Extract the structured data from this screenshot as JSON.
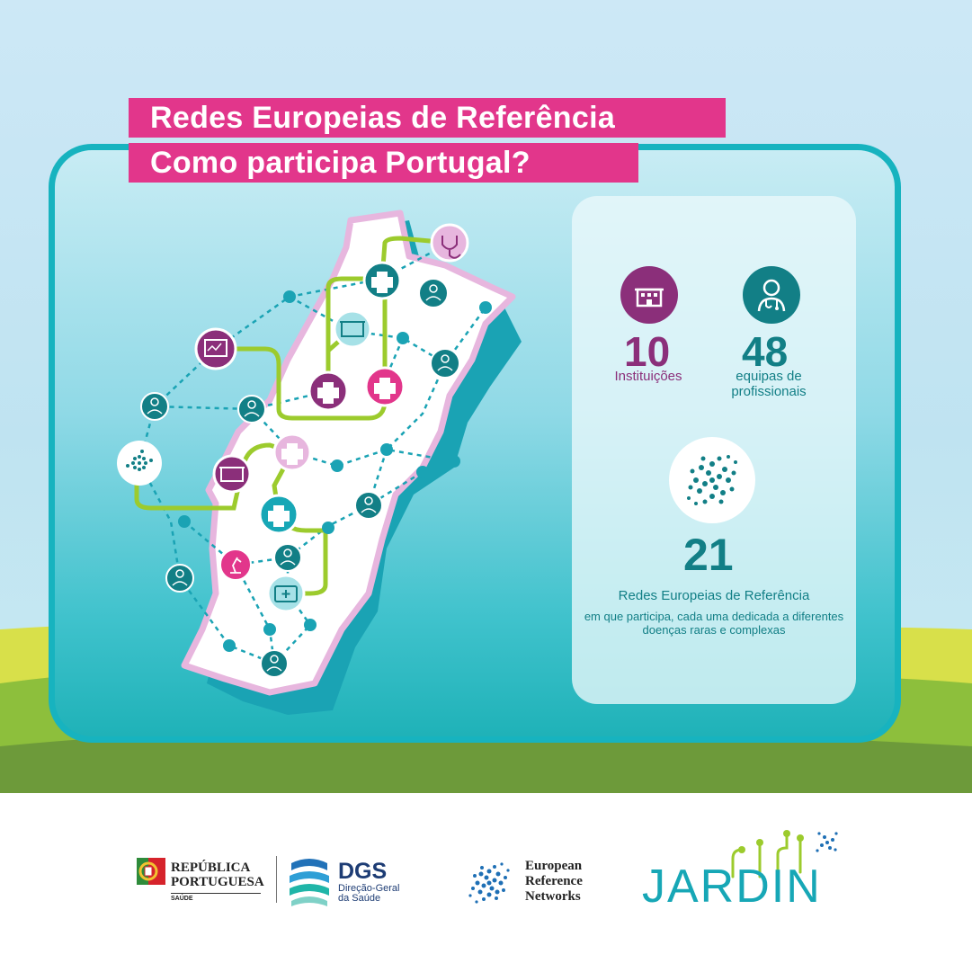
{
  "title": {
    "line1": "Redes Europeias de Referência",
    "line2": "Como participa Portugal?"
  },
  "stats": {
    "institutions": {
      "value": "10",
      "label": "Instituições",
      "icon": "hospital-building-icon"
    },
    "teams": {
      "value": "48",
      "label": "equipas de profissionais",
      "icon": "doctor-icon"
    },
    "networks": {
      "value": "21",
      "label": "Redes Europeias de Referência",
      "description": "em que participa, cada uma dedicada a diferentes doenças raras e complexas",
      "icon": "ern-dots-icon"
    }
  },
  "map": {
    "region": "Portugal",
    "icons": [
      "stethoscope-icon",
      "medical-cross-icon",
      "doctor-icon",
      "hospital-building-icon",
      "monitor-chart-icon",
      "ern-dots-icon",
      "microscope-icon",
      "first-aid-kit-icon"
    ]
  },
  "footer": {
    "republica": {
      "name": "REPÚBLICA\nPORTUGUESA",
      "sub": "SAÚDE"
    },
    "dgs": {
      "name": "DGS",
      "sub": "Direção-Geral\nda Saúde"
    },
    "ern": {
      "name": "European\nReference\nNetworks"
    },
    "jardin": {
      "name": "JARDIN"
    }
  },
  "colors": {
    "magenta": "#e2368b",
    "purple": "#8b2f7a",
    "teal": "#127f86",
    "frame": "#17b3bf",
    "green_route": "#9ccb2d",
    "light_pink": "#e7b6de"
  }
}
